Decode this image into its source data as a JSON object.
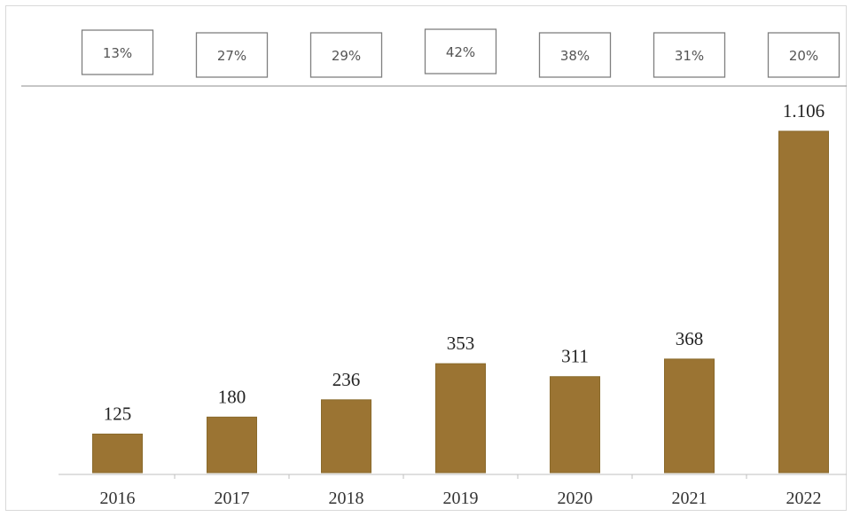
{
  "chart_data": {
    "type": "bar",
    "categories": [
      "2016",
      "2017",
      "2018",
      "2019",
      "2020",
      "2021",
      "2022"
    ],
    "values": [
      125,
      180,
      236,
      353,
      311,
      368,
      1106
    ],
    "value_labels": [
      "125",
      "180",
      "236",
      "353",
      "311",
      "368",
      "1.106"
    ],
    "growth_labels": [
      "13%",
      "27%",
      "29%",
      "42%",
      "38%",
      "31%",
      "20%"
    ],
    "title": "",
    "xlabel": "",
    "ylabel": "",
    "ylim": [
      0,
      1106
    ],
    "grid": false,
    "legend": "none",
    "bar_color": "#9b7433",
    "bar_outline_color": "#8a6a2c"
  }
}
